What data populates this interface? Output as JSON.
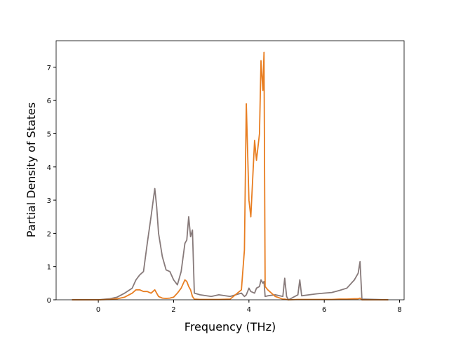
{
  "chart_data": {
    "type": "line",
    "xlabel": "Frequency (THz)",
    "ylabel": "Partial Density of States",
    "x": [
      -0.7,
      0,
      0.3,
      0.5,
      0.7,
      0.9,
      1.0,
      1.1,
      1.2,
      1.3,
      1.4,
      1.5,
      1.55,
      1.6,
      1.7,
      1.8,
      1.9,
      2.0,
      2.1,
      2.2,
      2.3,
      2.35,
      2.4,
      2.45,
      2.5,
      2.55,
      2.7,
      3.0,
      3.2,
      3.5,
      3.8,
      3.88,
      3.93,
      4.0,
      4.05,
      4.15,
      4.2,
      4.28,
      4.32,
      4.37,
      4.4,
      4.43,
      4.5,
      4.7,
      4.9,
      4.95,
      5.0,
      5.05,
      5.3,
      5.35,
      5.4,
      5.6,
      5.8,
      6.0,
      6.2,
      6.4,
      6.6,
      6.8,
      6.9,
      6.95,
      7.0,
      7.7
    ],
    "series": [
      {
        "color": "#877a7a",
        "values": [
          0,
          0,
          0.03,
          0.08,
          0.2,
          0.35,
          0.6,
          0.75,
          0.85,
          1.7,
          2.5,
          3.35,
          2.8,
          2.0,
          1.3,
          0.9,
          0.85,
          0.6,
          0.45,
          0.85,
          1.7,
          1.8,
          2.5,
          1.9,
          2.1,
          0.2,
          0.15,
          0.1,
          0.15,
          0.1,
          0.2,
          0.1,
          0.15,
          0.35,
          0.25,
          0.2,
          0.35,
          0.4,
          0.6,
          0.5,
          0.55,
          0.1,
          0.12,
          0.15,
          0.1,
          0.65,
          0.1,
          0,
          0.15,
          0.6,
          0.12,
          0.15,
          0.18,
          0.2,
          0.22,
          0.28,
          0.35,
          0.6,
          0.8,
          1.15,
          0.02,
          0
        ]
      },
      {
        "color": "#e87e22",
        "values": [
          0,
          0,
          0.01,
          0.03,
          0.08,
          0.2,
          0.3,
          0.3,
          0.25,
          0.25,
          0.2,
          0.3,
          0.2,
          0.1,
          0.05,
          0.04,
          0.05,
          0.08,
          0.2,
          0.35,
          0.6,
          0.55,
          0.4,
          0.3,
          0.1,
          0.02,
          0.01,
          0.01,
          0.01,
          0.02,
          0.3,
          1.5,
          5.9,
          3.0,
          2.5,
          4.8,
          4.2,
          5.0,
          7.2,
          6.3,
          7.45,
          0.4,
          0.3,
          0.1,
          0.02,
          0.02,
          0.01,
          0,
          0.01,
          0.01,
          0.01,
          0.01,
          0.01,
          0.01,
          0.01,
          0.02,
          0.02,
          0.03,
          0.03,
          0.05,
          0,
          0
        ]
      }
    ],
    "xlim": [
      -1.12,
      8.12
    ],
    "xticks": [
      0,
      2,
      4,
      6,
      8
    ],
    "ylim": [
      0,
      7.8
    ],
    "yticks": [
      0,
      1,
      2,
      3,
      4,
      5,
      6,
      7
    ]
  }
}
